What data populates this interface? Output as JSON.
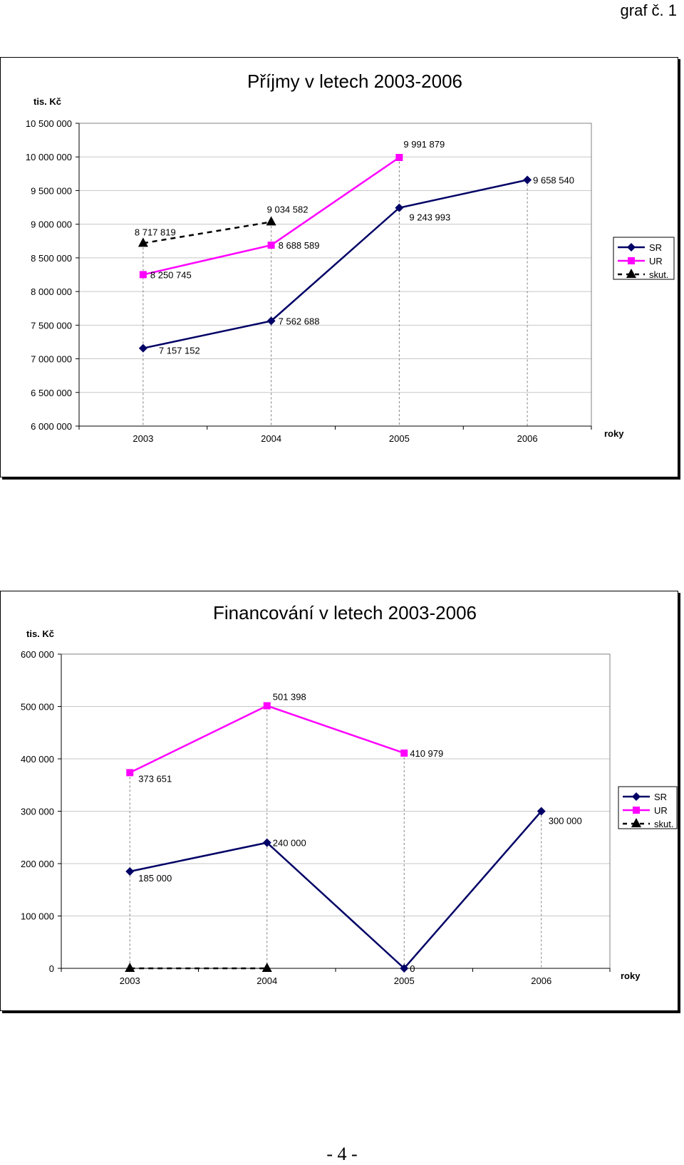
{
  "header": {
    "label": "graf č. 1"
  },
  "footer": {
    "page_number": "- 4 -"
  },
  "colors": {
    "SR": "#000066",
    "UR": "#ff00ff",
    "skut": "#000000"
  },
  "chart_data": [
    {
      "type": "line",
      "title": "Příjmy v letech 2003-2006",
      "ylabel": "tis. Kč",
      "xlabel": "roky",
      "categories": [
        "2003",
        "2004",
        "2005",
        "2006"
      ],
      "ylim": [
        6000000,
        10500000
      ],
      "yticks": [
        6000000,
        6500000,
        7000000,
        7500000,
        8000000,
        8500000,
        9000000,
        9500000,
        10000000,
        10500000
      ],
      "ytick_labels": [
        "6 000 000",
        "6 500 000",
        "7 000 000",
        "7 500 000",
        "8 000 000",
        "8 500 000",
        "9 000 000",
        "9 500 000",
        "10 000 000",
        "10 500 000"
      ],
      "grid": true,
      "legend_position": "right",
      "series": [
        {
          "name": "SR",
          "marker": "diamond",
          "dash": false,
          "values": [
            7157152,
            7562688,
            9243993,
            9658540
          ],
          "labels": [
            "7 157 152",
            "7 562 688",
            "9 243 993",
            "9 658 540"
          ]
        },
        {
          "name": "UR",
          "marker": "square",
          "dash": false,
          "values": [
            8250745,
            8688589,
            9991879,
            null
          ],
          "labels": [
            "8 250 745",
            "8 688 589",
            "9 991 879",
            null
          ]
        },
        {
          "name": "skut.",
          "marker": "triangle",
          "dash": true,
          "values": [
            8717819,
            9034582,
            null,
            null
          ],
          "labels": [
            "8 717 819",
            "9 034 582",
            null,
            null
          ]
        }
      ]
    },
    {
      "type": "line",
      "title": "Financování v letech 2003-2006",
      "ylabel": "tis. Kč",
      "xlabel": "roky",
      "categories": [
        "2003",
        "2004",
        "2005",
        "2006"
      ],
      "ylim": [
        0,
        600000
      ],
      "yticks": [
        0,
        100000,
        200000,
        300000,
        400000,
        500000,
        600000
      ],
      "ytick_labels": [
        "0",
        "100 000",
        "200 000",
        "300 000",
        "400 000",
        "500 000",
        "600 000"
      ],
      "grid": true,
      "legend_position": "right",
      "series": [
        {
          "name": "SR",
          "marker": "diamond",
          "dash": false,
          "values": [
            185000,
            240000,
            0,
            300000
          ],
          "labels": [
            "185 000",
            "240 000",
            "0",
            "300 000"
          ]
        },
        {
          "name": "UR",
          "marker": "square",
          "dash": false,
          "values": [
            373651,
            501398,
            410979,
            null
          ],
          "labels": [
            "373 651",
            "501 398",
            "410 979",
            null
          ]
        },
        {
          "name": "skut.",
          "marker": "triangle",
          "dash": true,
          "values": [
            0,
            0,
            null,
            null
          ],
          "labels": [
            null,
            null,
            null,
            null
          ]
        }
      ]
    }
  ]
}
